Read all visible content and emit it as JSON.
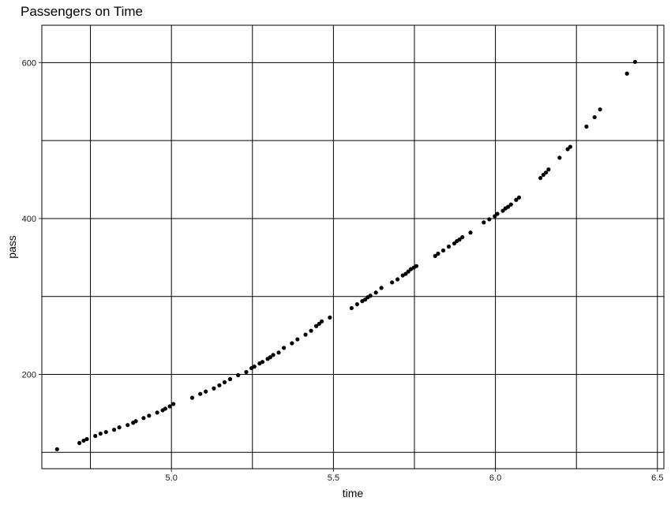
{
  "chart_data": {
    "type": "scatter",
    "title": "Passengers on Time",
    "xlabel": "time",
    "ylabel": "pass",
    "xlim": [
      4.6,
      6.52
    ],
    "ylim": [
      79,
      648
    ],
    "x_ticks": [
      "5.0",
      "5.5",
      "6.0",
      "6.5"
    ],
    "y_ticks": [
      "200",
      "400",
      "600"
    ],
    "x_gridlines": [
      4.75,
      5.0,
      5.25,
      5.5,
      5.75,
      6.0,
      6.25,
      6.5
    ],
    "y_gridlines": [
      100,
      200,
      300,
      400,
      500,
      600
    ],
    "grid": true,
    "point_color": "#000000",
    "points": [
      [
        4.647,
        104
      ],
      [
        4.716,
        112
      ],
      [
        4.729,
        115
      ],
      [
        4.739,
        117
      ],
      [
        4.765,
        121
      ],
      [
        4.781,
        124
      ],
      [
        4.798,
        126
      ],
      [
        4.823,
        129
      ],
      [
        4.839,
        132
      ],
      [
        4.865,
        135
      ],
      [
        4.882,
        138
      ],
      [
        4.89,
        140
      ],
      [
        4.914,
        144
      ],
      [
        4.931,
        147
      ],
      [
        4.956,
        151
      ],
      [
        4.973,
        154
      ],
      [
        4.981,
        156
      ],
      [
        4.995,
        159
      ],
      [
        5.006,
        162
      ],
      [
        5.064,
        170
      ],
      [
        5.089,
        175
      ],
      [
        5.106,
        178
      ],
      [
        5.131,
        182
      ],
      [
        5.148,
        186
      ],
      [
        5.164,
        190
      ],
      [
        5.181,
        194
      ],
      [
        5.181,
        194
      ],
      [
        5.206,
        199
      ],
      [
        5.231,
        203
      ],
      [
        5.247,
        208
      ],
      [
        5.256,
        210
      ],
      [
        5.272,
        214
      ],
      [
        5.281,
        216
      ],
      [
        5.297,
        220
      ],
      [
        5.305,
        222
      ],
      [
        5.314,
        225
      ],
      [
        5.331,
        228
      ],
      [
        5.347,
        234
      ],
      [
        5.372,
        240
      ],
      [
        5.389,
        245
      ],
      [
        5.414,
        251
      ],
      [
        5.431,
        256
      ],
      [
        5.447,
        262
      ],
      [
        5.456,
        265
      ],
      [
        5.464,
        268
      ],
      [
        5.489,
        273
      ],
      [
        5.556,
        285
      ],
      [
        5.573,
        290
      ],
      [
        5.589,
        294
      ],
      [
        5.598,
        296
      ],
      [
        5.606,
        299
      ],
      [
        5.614,
        301
      ],
      [
        5.631,
        305
      ],
      [
        5.648,
        311
      ],
      [
        5.681,
        318
      ],
      [
        5.698,
        322
      ],
      [
        5.714,
        327
      ],
      [
        5.723,
        329
      ],
      [
        5.731,
        332
      ],
      [
        5.739,
        335
      ],
      [
        5.748,
        337
      ],
      [
        5.756,
        339
      ],
      [
        5.814,
        352
      ],
      [
        5.823,
        355
      ],
      [
        5.839,
        359
      ],
      [
        5.856,
        364
      ],
      [
        5.873,
        368
      ],
      [
        5.881,
        371
      ],
      [
        5.889,
        373
      ],
      [
        5.898,
        376
      ],
      [
        5.923,
        382
      ],
      [
        5.964,
        395
      ],
      [
        5.981,
        399
      ],
      [
        5.998,
        403
      ],
      [
        6.006,
        406
      ],
      [
        6.023,
        410
      ],
      [
        6.031,
        413
      ],
      [
        6.039,
        415
      ],
      [
        6.048,
        418
      ],
      [
        6.064,
        424
      ],
      [
        6.073,
        427
      ],
      [
        6.139,
        452
      ],
      [
        6.148,
        456
      ],
      [
        6.156,
        459
      ],
      [
        6.164,
        463
      ],
      [
        6.198,
        478
      ],
      [
        6.223,
        489
      ],
      [
        6.231,
        492
      ],
      [
        6.281,
        518
      ],
      [
        6.306,
        530
      ],
      [
        6.323,
        540
      ],
      [
        6.406,
        586
      ],
      [
        6.431,
        601
      ]
    ]
  }
}
